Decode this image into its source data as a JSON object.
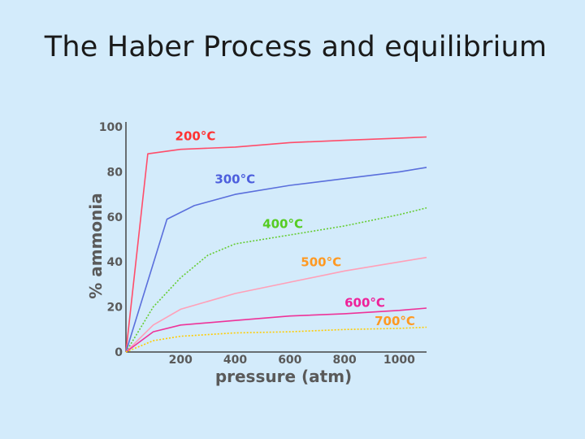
{
  "slide": {
    "title": "The Haber Process and equilibrium"
  },
  "chart_data": {
    "type": "line",
    "title": "",
    "xlabel": "pressure (atm)",
    "ylabel": "% ammonia",
    "xlim": [
      0,
      1100
    ],
    "ylim": [
      0,
      100
    ],
    "x_ticks": [
      200,
      400,
      600,
      800,
      1000
    ],
    "y_ticks": [
      0,
      20,
      40,
      60,
      80,
      100
    ],
    "grid": false,
    "series": [
      {
        "name": "200°C",
        "color": "#ff4d6a",
        "dash": "solid",
        "x": [
          0,
          80,
          200,
          400,
          600,
          800,
          1000,
          1100
        ],
        "y": [
          0,
          88,
          90,
          91,
          93,
          94,
          95,
          95.5
        ]
      },
      {
        "name": "300°C",
        "color": "#5a6fdc",
        "dash": "solid",
        "x": [
          0,
          150,
          250,
          400,
          600,
          800,
          1000,
          1100
        ],
        "y": [
          0,
          59,
          65,
          70,
          74,
          77,
          80,
          82
        ]
      },
      {
        "name": "400°C",
        "color": "#66cc33",
        "dash": "dotted",
        "x": [
          0,
          100,
          200,
          300,
          400,
          600,
          800,
          1000,
          1100
        ],
        "y": [
          0,
          20,
          33,
          43,
          48,
          52,
          56,
          61,
          64
        ]
      },
      {
        "name": "500°C",
        "color": "#ffa0b8",
        "dash": "solid",
        "x": [
          0,
          100,
          200,
          400,
          600,
          800,
          1000,
          1100
        ],
        "y": [
          0,
          12,
          19,
          26,
          31,
          36,
          40,
          42
        ]
      },
      {
        "name": "600°C",
        "color": "#ee3399",
        "dash": "solid",
        "x": [
          0,
          100,
          200,
          400,
          600,
          800,
          1000,
          1100
        ],
        "y": [
          0,
          9,
          12,
          14,
          16,
          17,
          18.5,
          19.5
        ]
      },
      {
        "name": "700°C",
        "color": "#ffcc00",
        "dash": "dotted",
        "x": [
          0,
          100,
          200,
          400,
          600,
          800,
          1000,
          1100
        ],
        "y": [
          0,
          5,
          7,
          8.5,
          9,
          10,
          10.5,
          11
        ]
      }
    ],
    "annotations": [
      {
        "series": 0,
        "text": "200°C",
        "color": "#ff3333",
        "x": 180,
        "y": 94
      },
      {
        "series": 1,
        "text": "300°C",
        "color": "#4d5fdd",
        "x": 325,
        "y": 75
      },
      {
        "series": 2,
        "text": "400°C",
        "color": "#55cc22",
        "x": 500,
        "y": 55
      },
      {
        "series": 3,
        "text": "500°C",
        "color": "#ff9922",
        "x": 640,
        "y": 38
      },
      {
        "series": 4,
        "text": "600°C",
        "color": "#ee2299",
        "x": 800,
        "y": 20
      },
      {
        "series": 5,
        "text": "700°C",
        "color": "#ff9922",
        "x": 910,
        "y": 12
      }
    ]
  }
}
